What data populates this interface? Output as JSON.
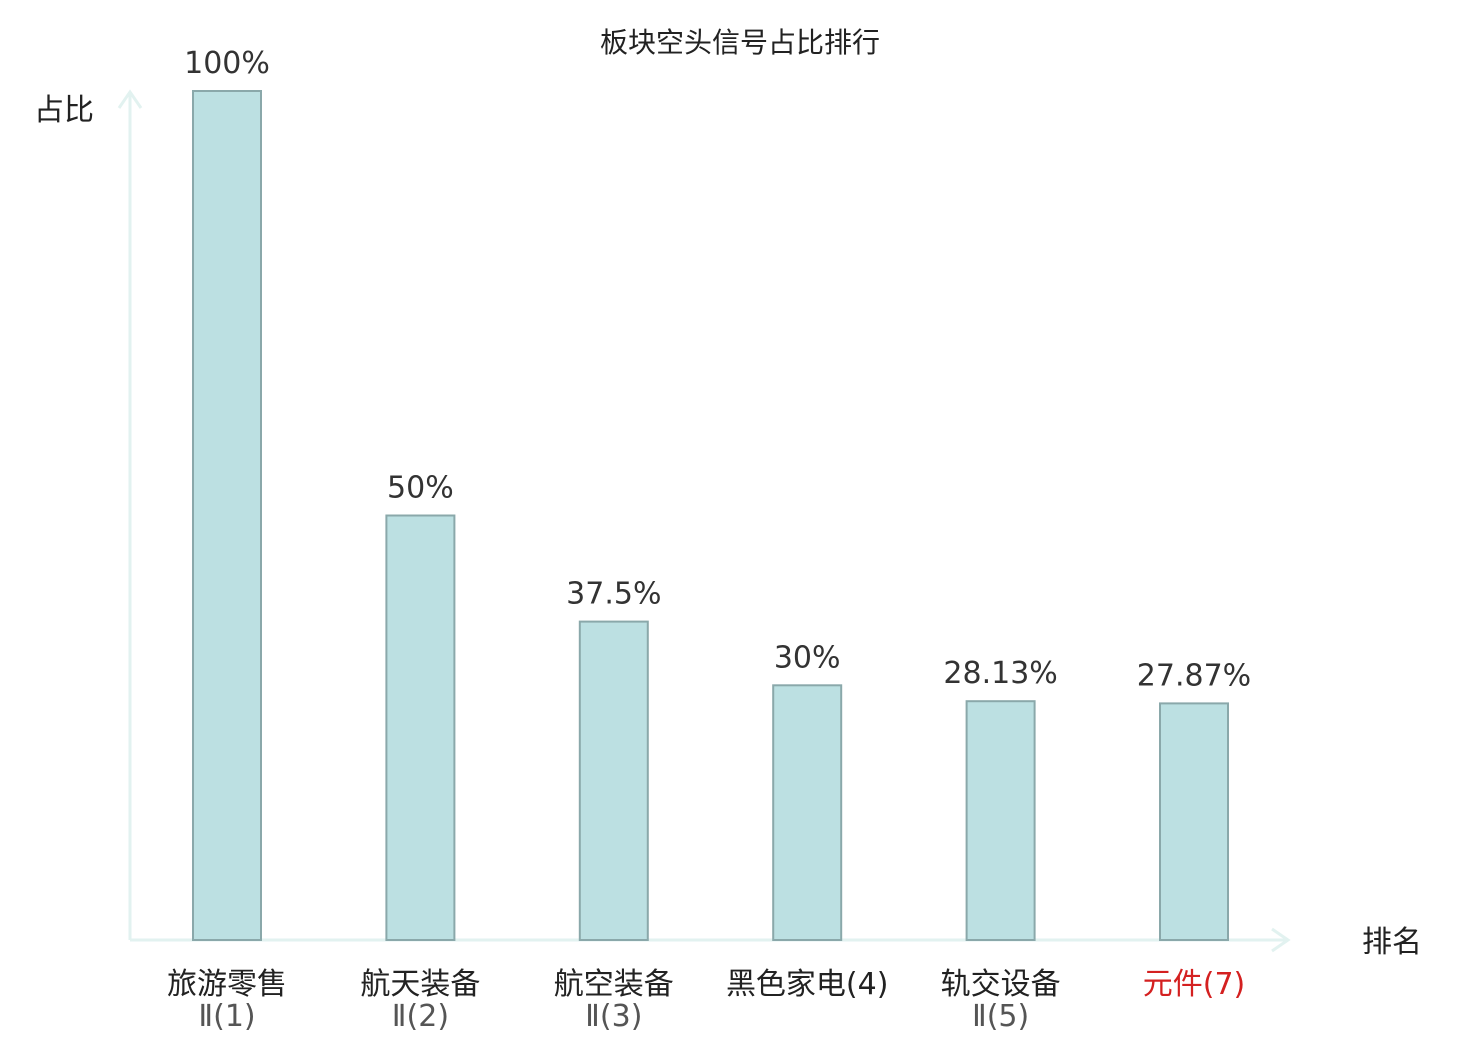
{
  "chart_data": {
    "type": "bar",
    "title": "板块空头信号占比排行",
    "ylabel": "占比",
    "xlabel": "排名",
    "ylim": [
      0,
      100
    ],
    "grid": false,
    "categories": [
      {
        "line1": "旅游零售",
        "line2": "Ⅱ(1)"
      },
      {
        "line1": "航天装备",
        "line2": "Ⅱ(2)"
      },
      {
        "line1": "航空装备",
        "line2": "Ⅱ(3)"
      },
      {
        "line1": "黑色家电(4)",
        "line2": ""
      },
      {
        "line1": "轨交设备",
        "line2": "Ⅱ(5)"
      },
      {
        "line1": "元件(7)",
        "line2": ""
      }
    ],
    "values": [
      100,
      50,
      37.5,
      30,
      28.13,
      27.87
    ],
    "value_labels": [
      "100%",
      "50%",
      "37.5%",
      "30%",
      "28.13%",
      "27.87%"
    ],
    "highlight_index": 5,
    "colors": {
      "bar_fill": "#bce0e2",
      "bar_stroke": "#8aa8aa",
      "axis": "#e2f2f0",
      "highlight_text": "#d42020"
    }
  }
}
